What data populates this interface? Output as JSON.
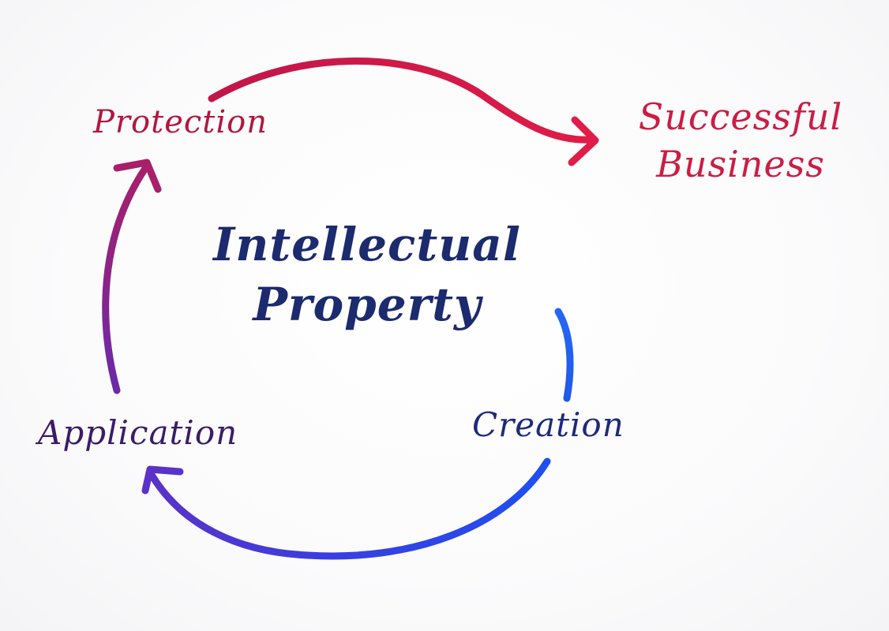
{
  "diagram": {
    "center": {
      "line1": "Intellectual",
      "line2": "Property"
    },
    "nodes": {
      "protection": "Protection",
      "success_line1": "Successful",
      "success_line2": "Business",
      "creation": "Creation",
      "application": "Application"
    },
    "colors": {
      "protection": "#b3163f",
      "success": "#cc1c45",
      "center": "#1c2a6e",
      "creation": "#1e2a78",
      "application": "#3b1c66",
      "arrow_red": "#d81b45",
      "arrow_blue": "#2b3fe0",
      "arrow_purple": "#8a2a9a"
    },
    "arrows": [
      {
        "from": "Protection",
        "to": "Successful Business",
        "color": "red"
      },
      {
        "from": "Creation",
        "to": "Application",
        "color": "blue"
      },
      {
        "from": "Application",
        "to": "Protection",
        "color": "purple"
      }
    ]
  }
}
